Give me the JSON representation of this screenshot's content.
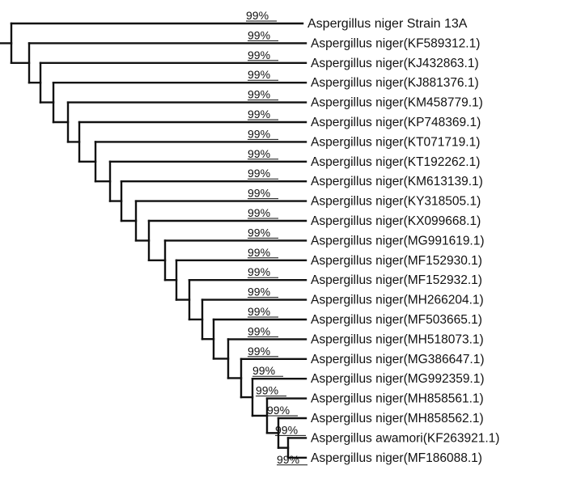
{
  "tree": {
    "taxa": [
      "Aspergillus niger Strain 13A",
      "Aspergillus niger(KF589312.1)",
      "Aspergillus niger(KJ432863.1)",
      "Aspergillus niger(KJ881376.1)",
      "Aspergillus niger(KM458779.1)",
      "Aspergillus niger(KP748369.1)",
      "Aspergillus niger(KT071719.1)",
      "Aspergillus niger(KT192262.1)",
      "Aspergillus niger(KM613139.1)",
      "Aspergillus niger(KY318505.1)",
      "Aspergillus niger(KX099668.1)",
      "Aspergillus niger(MG991619.1)",
      "Aspergillus niger(MF152930.1)",
      "Aspergillus niger(MF152932.1)",
      "Aspergillus niger(MH266204.1)",
      "Aspergillus niger(MF503665.1)",
      "Aspergillus niger(MH518073.1)",
      "Aspergillus niger(MG386647.1)",
      "Aspergillus niger(MG992359.1)",
      "Aspergillus niger(MH858561.1)",
      "Aspergillus niger(MH858562.1)",
      "Aspergillus awamori(KF263921.1)",
      "Aspergillus niger(MF186088.1)"
    ],
    "support_values": [
      "99%",
      "99%",
      "99%",
      "99%",
      "99%",
      "99%",
      "99%",
      "99%",
      "99%",
      "99%",
      "99%",
      "99%",
      "99%",
      "99%",
      "99%",
      "99%",
      "99%",
      "99%",
      "99%",
      "99%",
      "99%",
      "99%",
      "99%"
    ]
  }
}
